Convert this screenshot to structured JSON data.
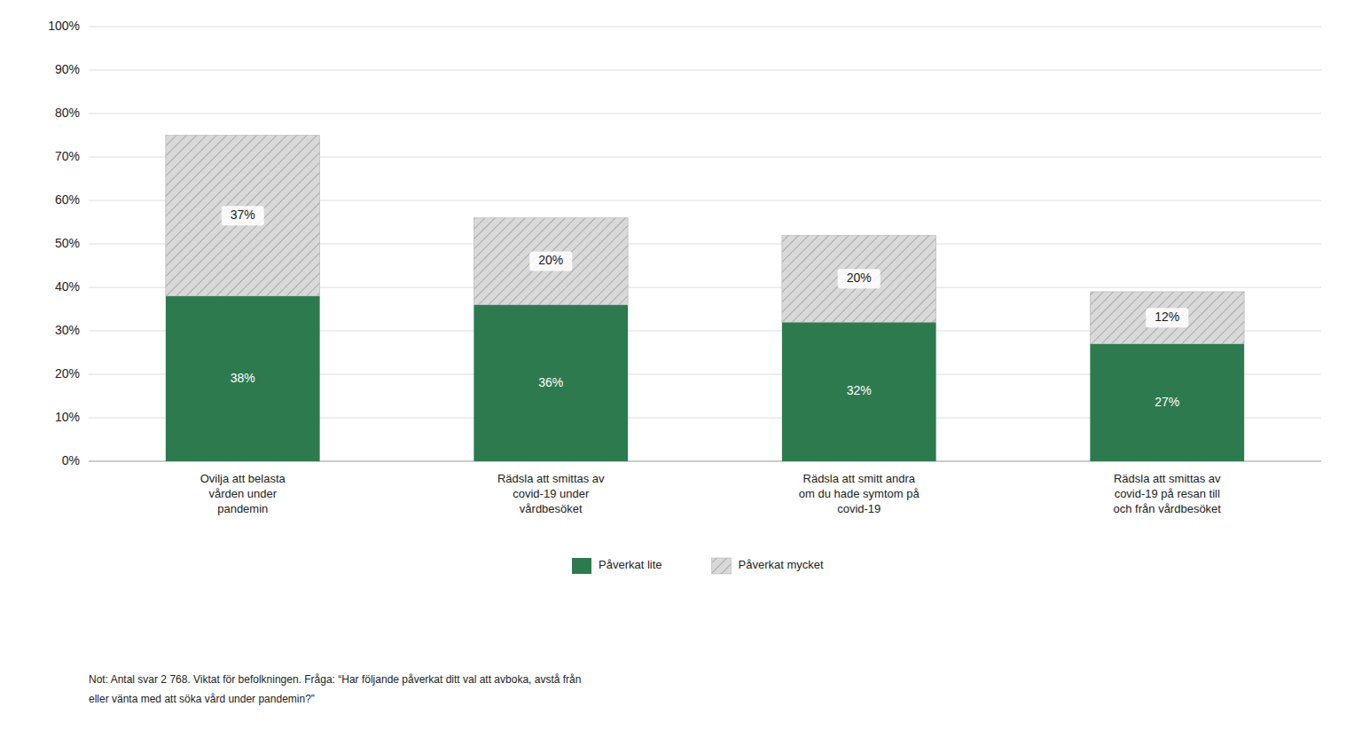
{
  "chart_data": {
    "type": "bar",
    "stacked": true,
    "categories": [
      "Ovilja att belasta\nvården under\npandemin",
      "Rädsla att smittas av\ncovid-19 under\nvårdbesöket",
      "Rädsla att smitt andra\nom du hade symtom på\ncovid-19",
      "Rädsla att smittas av\ncovid-19 på resan till\noch från vårdbesöket"
    ],
    "series": [
      {
        "name": "Påverkat lite",
        "color": "#2d7a4f",
        "values": [
          38,
          36,
          32,
          27
        ],
        "value_labels": [
          "38%",
          "36%",
          "32%",
          "27%"
        ]
      },
      {
        "name": "Påverkat mycket",
        "color": "#d9d9d9",
        "values": [
          37,
          20,
          20,
          12
        ],
        "value_labels": [
          "37%",
          "20%",
          "20%",
          "12%"
        ]
      }
    ],
    "data_labels": true,
    "ylim": [
      0,
      100
    ],
    "yticks": [
      {
        "value": 0,
        "label": "0%"
      },
      {
        "value": 10,
        "label": "10%"
      },
      {
        "value": 20,
        "label": "20%"
      },
      {
        "value": 30,
        "label": "30%"
      },
      {
        "value": 40,
        "label": "40%"
      },
      {
        "value": 50,
        "label": "50%"
      },
      {
        "value": 60,
        "label": "60%"
      },
      {
        "value": 70,
        "label": "70%"
      },
      {
        "value": 80,
        "label": "80%"
      },
      {
        "value": 90,
        "label": "90%"
      },
      {
        "value": 100,
        "label": "100%"
      }
    ],
    "grid": true,
    "legend": "bottom",
    "annotations": [
      "Not: Antal svar 2 768. Viktat för befolkningen. Fråga: “Har följande påverkat ditt val att avboka, avstå från",
      "eller vänta med att söka vård under pandemin?”"
    ]
  }
}
